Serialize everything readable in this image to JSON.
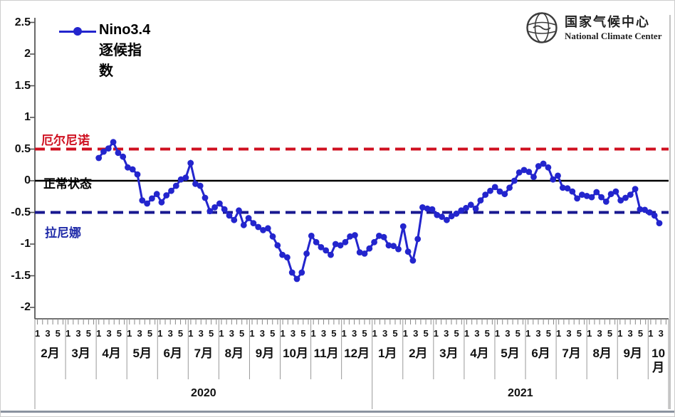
{
  "legend": {
    "label": "Nino3.4逐候指数"
  },
  "logo": {
    "title_cn": "国家气候中心",
    "title_en": "National Climate Center"
  },
  "annotations": {
    "el_nino": {
      "text": "厄尔尼诺",
      "color": "#cf1020"
    },
    "normal": {
      "text": "正常状态",
      "color": "#000000"
    },
    "la_nina": {
      "text": "拉尼娜",
      "color": "#1f2aa8"
    }
  },
  "chart_data": {
    "type": "line",
    "title": "Nino3.4逐候指数",
    "xlabel": "",
    "ylabel": "",
    "ylim": [
      -2,
      2.5
    ],
    "grid": false,
    "legend_position": "top-left",
    "x_unit": "候 (pentad)",
    "y_ticks": [
      2.5,
      2,
      1.5,
      1,
      0.5,
      0,
      -0.5,
      -1,
      -1.5,
      -2
    ],
    "reference_lines": [
      {
        "value": 0.5,
        "style": "dashed",
        "color": "#cf1020",
        "label": "厄尔尼诺"
      },
      {
        "value": 0,
        "style": "solid",
        "color": "#000000",
        "label": "正常状态"
      },
      {
        "value": -0.5,
        "style": "dashed",
        "color": "#181890",
        "label": "拉尼娜"
      }
    ],
    "x_axis": {
      "pentad_labels_full_month": [
        "1",
        "3",
        "5"
      ],
      "pentad_labels_last_month": [
        "1",
        "3"
      ],
      "years": [
        {
          "label": "2020",
          "months": [
            "2月",
            "3月",
            "4月",
            "5月",
            "6月",
            "7月",
            "8月",
            "9月",
            "10月",
            "11月",
            "12月"
          ]
        },
        {
          "label": "2021",
          "months": [
            "1月",
            "2月",
            "3月",
            "4月",
            "5月",
            "6月",
            "7月",
            "8月",
            "9月",
            "10月"
          ]
        }
      ]
    },
    "series": [
      {
        "name": "Nino3.4逐候指数",
        "color": "#2325cd",
        "start_month": "2020年4月",
        "start_pentad": 1,
        "values": [
          0.36,
          0.46,
          0.51,
          0.61,
          0.44,
          0.38,
          0.21,
          0.18,
          0.1,
          -0.31,
          -0.36,
          -0.28,
          -0.21,
          -0.34,
          -0.23,
          -0.16,
          -0.08,
          0.02,
          0.05,
          0.28,
          -0.05,
          -0.08,
          -0.27,
          -0.48,
          -0.42,
          -0.36,
          -0.45,
          -0.55,
          -0.62,
          -0.47,
          -0.7,
          -0.59,
          -0.67,
          -0.73,
          -0.78,
          -0.75,
          -0.88,
          -1.02,
          -1.17,
          -1.21,
          -1.45,
          -1.55,
          -1.45,
          -1.15,
          -0.87,
          -0.97,
          -1.05,
          -1.1,
          -1.17,
          -1.0,
          -1.02,
          -0.97,
          -0.88,
          -0.86,
          -1.13,
          -1.15,
          -1.07,
          -0.97,
          -0.87,
          -0.89,
          -1.02,
          -1.03,
          -1.08,
          -0.72,
          -1.12,
          -1.26,
          -0.92,
          -0.42,
          -0.44,
          -0.45,
          -0.54,
          -0.57,
          -0.62,
          -0.56,
          -0.52,
          -0.47,
          -0.43,
          -0.38,
          -0.44,
          -0.31,
          -0.22,
          -0.16,
          -0.1,
          -0.17,
          -0.21,
          -0.11,
          0.0,
          0.13,
          0.17,
          0.14,
          0.06,
          0.23,
          0.27,
          0.21,
          0.02,
          0.08,
          -0.11,
          -0.12,
          -0.17,
          -0.28,
          -0.22,
          -0.24,
          -0.26,
          -0.18,
          -0.26,
          -0.33,
          -0.21,
          -0.17,
          -0.31,
          -0.27,
          -0.22,
          -0.13,
          -0.45,
          -0.46,
          -0.5,
          -0.55,
          -0.67
        ]
      }
    ]
  }
}
